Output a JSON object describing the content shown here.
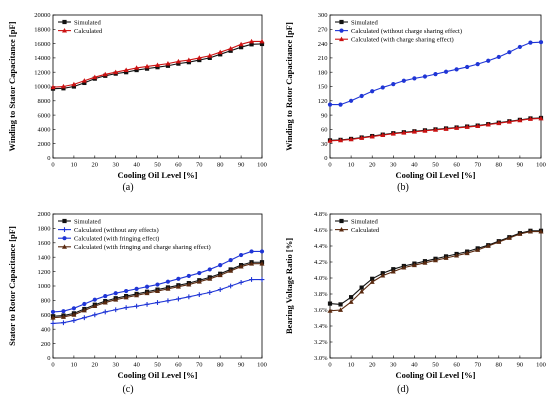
{
  "panels": [
    {
      "caption": "(a)",
      "xlabel": "Cooling Oil Level [%]",
      "ylabel": "Winding to Stator Capacitance  [pF]",
      "xlim": [
        0,
        100
      ],
      "ylim": [
        0,
        20000
      ],
      "xticks": [
        "0",
        "10",
        "20",
        "30",
        "40",
        "50",
        "60",
        "70",
        "80",
        "90",
        "100"
      ],
      "yticks": [
        "0",
        "2000",
        "4000",
        "6000",
        "8000",
        "10000",
        "12000",
        "14000",
        "16000",
        "18000",
        "20000"
      ],
      "legend": "top-left",
      "series": [
        {
          "name": "Simulated",
          "color": "#111111",
          "marker": "square",
          "x": [
            0,
            5,
            10,
            15,
            20,
            25,
            30,
            35,
            40,
            45,
            50,
            55,
            60,
            65,
            70,
            75,
            80,
            85,
            90,
            95,
            100
          ],
          "y": [
            9700,
            9750,
            10000,
            10500,
            11100,
            11500,
            11800,
            12000,
            12300,
            12500,
            12700,
            12900,
            13200,
            13400,
            13700,
            14000,
            14500,
            15000,
            15500,
            15900,
            15950
          ]
        },
        {
          "name": "Calculated",
          "color": "#cc1111",
          "marker": "triangle",
          "x": [
            0,
            5,
            10,
            15,
            20,
            25,
            30,
            35,
            40,
            45,
            50,
            55,
            60,
            65,
            70,
            75,
            80,
            85,
            90,
            95,
            100
          ],
          "y": [
            9900,
            10000,
            10300,
            10800,
            11300,
            11700,
            12000,
            12300,
            12600,
            12800,
            13000,
            13200,
            13500,
            13700,
            14000,
            14300,
            14800,
            15300,
            15900,
            16300,
            16300
          ]
        }
      ]
    },
    {
      "caption": "(b)",
      "xlabel": "Cooling Oil Level [%]",
      "ylabel": "Winding to Rotor Capacitance  [pF]",
      "xlim": [
        0,
        100
      ],
      "ylim": [
        0,
        300
      ],
      "xticks": [
        "0",
        "10",
        "20",
        "30",
        "40",
        "50",
        "60",
        "70",
        "80",
        "90",
        "100"
      ],
      "yticks": [
        "0",
        "30",
        "60",
        "90",
        "120",
        "150",
        "180",
        "210",
        "240",
        "270",
        "300"
      ],
      "legend": "top-left",
      "series": [
        {
          "name": "Simulated",
          "color": "#111111",
          "marker": "square",
          "x": [
            0,
            5,
            10,
            15,
            20,
            25,
            30,
            35,
            40,
            45,
            50,
            55,
            60,
            65,
            70,
            75,
            80,
            85,
            90,
            95,
            100
          ],
          "y": [
            37,
            38,
            40,
            43,
            46,
            49,
            52,
            54,
            56,
            58,
            60,
            62,
            64,
            66,
            68,
            71,
            74,
            77,
            80,
            83,
            84
          ]
        },
        {
          "name": "Calculated (without charge sharing effect)",
          "color": "#1f35d6",
          "marker": "circle",
          "x": [
            0,
            5,
            10,
            15,
            20,
            25,
            30,
            35,
            40,
            45,
            50,
            55,
            60,
            65,
            70,
            75,
            80,
            85,
            90,
            95,
            100
          ],
          "y": [
            112,
            112,
            120,
            130,
            140,
            148,
            155,
            162,
            167,
            171,
            176,
            181,
            186,
            191,
            197,
            204,
            212,
            222,
            233,
            242,
            243
          ]
        },
        {
          "name": "Calculated (with charge sharing effect)",
          "color": "#cc1111",
          "marker": "triangle",
          "x": [
            0,
            5,
            10,
            15,
            20,
            25,
            30,
            35,
            40,
            45,
            50,
            55,
            60,
            65,
            70,
            75,
            80,
            85,
            90,
            95,
            100
          ],
          "y": [
            36,
            37,
            39,
            42,
            45,
            48,
            51,
            53,
            55,
            57,
            59,
            61,
            63,
            65,
            67,
            70,
            73,
            76,
            79,
            82,
            83
          ]
        }
      ]
    },
    {
      "caption": "(c)",
      "xlabel": "Cooling Oil Level [%]",
      "ylabel": "Stator to Rotor Capacitance  [pF]",
      "xlim": [
        0,
        100
      ],
      "ylim": [
        0,
        2000
      ],
      "xticks": [
        "0",
        "10",
        "20",
        "30",
        "40",
        "50",
        "60",
        "70",
        "80",
        "90",
        "100"
      ],
      "yticks": [
        "0",
        "200",
        "400",
        "600",
        "800",
        "1000",
        "1200",
        "1400",
        "1600",
        "1800",
        "2000"
      ],
      "legend": "top-left",
      "series": [
        {
          "name": "Simulated",
          "color": "#111111",
          "marker": "square",
          "x": [
            0,
            5,
            10,
            15,
            20,
            25,
            30,
            35,
            40,
            45,
            50,
            55,
            60,
            65,
            70,
            75,
            80,
            85,
            90,
            95,
            100
          ],
          "y": [
            580,
            590,
            620,
            680,
            740,
            790,
            830,
            860,
            890,
            920,
            950,
            980,
            1010,
            1040,
            1080,
            1120,
            1170,
            1230,
            1290,
            1330,
            1330
          ]
        },
        {
          "name": "Calculated (without any effects)",
          "color": "#1f35d6",
          "marker": "plus",
          "x": [
            0,
            5,
            10,
            15,
            20,
            25,
            30,
            35,
            40,
            45,
            50,
            55,
            60,
            65,
            70,
            75,
            80,
            85,
            90,
            95,
            100
          ],
          "y": [
            480,
            490,
            520,
            560,
            600,
            640,
            670,
            700,
            720,
            745,
            770,
            795,
            820,
            850,
            880,
            910,
            950,
            1000,
            1050,
            1090,
            1090
          ]
        },
        {
          "name": "Calculated (with fringing effect)",
          "color": "#1f35d6",
          "marker": "circle",
          "x": [
            0,
            5,
            10,
            15,
            20,
            25,
            30,
            35,
            40,
            45,
            50,
            55,
            60,
            65,
            70,
            75,
            80,
            85,
            90,
            95,
            100
          ],
          "y": [
            640,
            650,
            690,
            750,
            810,
            860,
            900,
            930,
            960,
            990,
            1020,
            1060,
            1100,
            1140,
            1180,
            1230,
            1290,
            1360,
            1430,
            1480,
            1480
          ]
        },
        {
          "name": "Calculated (with fringing and charge sharing effect)",
          "color": "#5a2a10",
          "marker": "triangle",
          "x": [
            0,
            5,
            10,
            15,
            20,
            25,
            30,
            35,
            40,
            45,
            50,
            55,
            60,
            65,
            70,
            75,
            80,
            85,
            90,
            95,
            100
          ],
          "y": [
            560,
            570,
            600,
            660,
            720,
            770,
            810,
            840,
            870,
            900,
            930,
            960,
            990,
            1020,
            1060,
            1100,
            1150,
            1210,
            1270,
            1310,
            1310
          ]
        }
      ]
    },
    {
      "caption": "(d)",
      "xlabel": "Cooling Oil Level [%]",
      "ylabel": "Bearing Voltage Ratio [%]",
      "xlim": [
        0,
        100
      ],
      "ylim": [
        3.0,
        4.8
      ],
      "xticks": [
        "0",
        "10",
        "20",
        "30",
        "40",
        "50",
        "60",
        "70",
        "80",
        "90",
        "100"
      ],
      "yticks": [
        "3.0%",
        "3.2%",
        "3.4%",
        "3.6%",
        "3.8%",
        "4.0%",
        "4.2%",
        "4.4%",
        "4.6%",
        "4.8%"
      ],
      "legend": "top-left",
      "series": [
        {
          "name": "Simulated",
          "color": "#111111",
          "marker": "square",
          "x": [
            0,
            5,
            10,
            15,
            20,
            25,
            30,
            35,
            40,
            45,
            50,
            55,
            60,
            65,
            70,
            75,
            80,
            85,
            90,
            95,
            100
          ],
          "y": [
            3.68,
            3.67,
            3.76,
            3.88,
            3.99,
            4.06,
            4.11,
            4.15,
            4.18,
            4.21,
            4.24,
            4.27,
            4.3,
            4.33,
            4.37,
            4.41,
            4.46,
            4.51,
            4.56,
            4.59,
            4.59
          ]
        },
        {
          "name": "Calculated",
          "color": "#5a2a10",
          "marker": "triangle",
          "x": [
            0,
            5,
            10,
            15,
            20,
            25,
            30,
            35,
            40,
            45,
            50,
            55,
            60,
            65,
            70,
            75,
            80,
            85,
            90,
            95,
            100
          ],
          "y": [
            3.59,
            3.6,
            3.7,
            3.83,
            3.95,
            4.03,
            4.08,
            4.13,
            4.16,
            4.19,
            4.22,
            4.25,
            4.28,
            4.31,
            4.35,
            4.4,
            4.45,
            4.5,
            4.55,
            4.58,
            4.58
          ]
        }
      ]
    }
  ]
}
